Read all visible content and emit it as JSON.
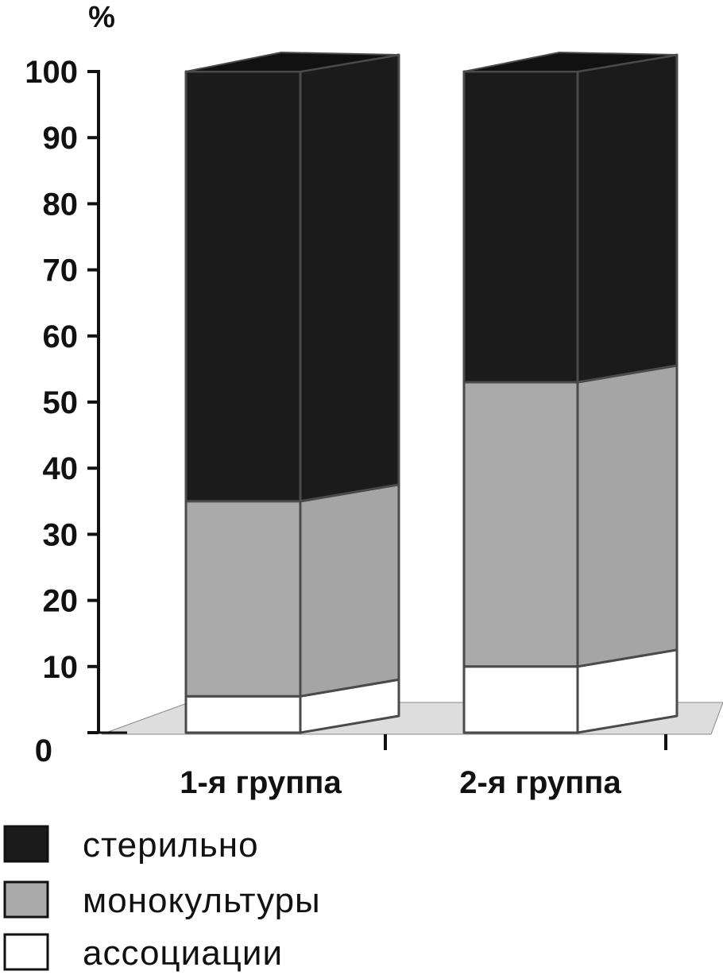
{
  "chart_data": {
    "type": "bar",
    "stacked": true,
    "style": "3d",
    "ylabel": "%",
    "ylim": [
      0,
      100
    ],
    "yticks": [
      0,
      10,
      20,
      30,
      40,
      50,
      60,
      70,
      80,
      90,
      100
    ],
    "categories": [
      "1-я группа",
      "2-я группа"
    ],
    "series": [
      {
        "name": "ассоциации",
        "values": [
          5.5,
          10
        ],
        "color": "#ffffff"
      },
      {
        "name": "монокультуры",
        "values": [
          29.5,
          43
        ],
        "color": "#aaaaaa"
      },
      {
        "name": "стерильно",
        "values": [
          65,
          47
        ],
        "color": "#1b1b1b"
      }
    ],
    "legend": {
      "placement": "bottom-left",
      "order": [
        "стерильно",
        "монокультуры",
        "ассоциации"
      ]
    },
    "grid": false
  }
}
